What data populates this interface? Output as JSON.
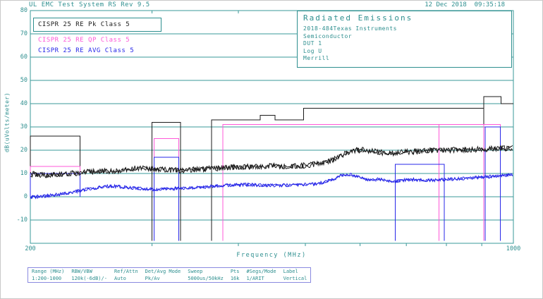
{
  "window": {
    "title": "UL EMC Test System RS Rev 9.5",
    "datetime": "12 Dec 2018  09:35:18"
  },
  "colors": {
    "teal": "#2e8f8f",
    "grid": "#3a9999",
    "pk": "#1b1b1b",
    "qp": "#ff58d8",
    "avg": "#2727e8",
    "table_border": "#8a8ae0",
    "background": "#ffffff"
  },
  "legend": [
    {
      "label": "CISPR 25 RE Pk Class 5",
      "color_key": "pk"
    },
    {
      "label": "CISPR 25 RE QP Class 5",
      "color_key": "qp"
    },
    {
      "label": "CISPR 25 RE AVG Class 5",
      "color_key": "avg"
    }
  ],
  "info_box": {
    "title": "Radiated Emissions",
    "lines": [
      "2018-484Texas Instruments",
      "Semiconductor",
      "DUT 1",
      "Log U",
      "Merrill"
    ]
  },
  "chart_data": {
    "type": "line",
    "title": "Radiated Emissions",
    "x_axis": {
      "label": "Frequency (MHz)",
      "scale": "log",
      "min": 200,
      "max": 1000,
      "tick_labels": [
        200,
        1000
      ],
      "minor_ticks": [
        300,
        400,
        500,
        600,
        700,
        800,
        900
      ]
    },
    "y_axis": {
      "label": "dB(uVolts/meter)",
      "min": -20,
      "max": 80,
      "tick_labels": [
        80,
        70,
        60,
        50,
        40,
        30,
        20,
        10,
        0,
        -10
      ]
    },
    "series": [
      {
        "name": "CISPR 25 RE AVG Class 5 trace",
        "color_key": "avg",
        "noise_db": 0.7,
        "seed": 99,
        "passes": 2,
        "width": 1,
        "anchors": [
          [
            200,
            -0.2
          ],
          [
            210,
            0.3
          ],
          [
            222,
            1.2
          ],
          [
            235,
            2.5
          ],
          [
            248,
            3.8
          ],
          [
            260,
            4.6
          ],
          [
            272,
            4.2
          ],
          [
            285,
            3.6
          ],
          [
            300,
            3.2
          ],
          [
            315,
            3.4
          ],
          [
            330,
            3.6
          ],
          [
            350,
            4.0
          ],
          [
            370,
            4.6
          ],
          [
            390,
            5.0
          ],
          [
            410,
            5.2
          ],
          [
            430,
            5.0
          ],
          [
            450,
            4.8
          ],
          [
            470,
            5.0
          ],
          [
            490,
            5.2
          ],
          [
            510,
            5.4
          ],
          [
            530,
            6.0
          ],
          [
            550,
            7.5
          ],
          [
            565,
            9.2
          ],
          [
            580,
            9.6
          ],
          [
            595,
            8.6
          ],
          [
            610,
            7.4
          ],
          [
            625,
            7.0
          ],
          [
            640,
            7.6
          ],
          [
            655,
            7.0
          ],
          [
            670,
            6.6
          ],
          [
            690,
            7.0
          ],
          [
            710,
            7.4
          ],
          [
            730,
            7.2
          ],
          [
            760,
            7.0
          ],
          [
            800,
            7.4
          ],
          [
            840,
            7.8
          ],
          [
            880,
            8.2
          ],
          [
            920,
            8.6
          ],
          [
            960,
            9.0
          ],
          [
            1000,
            9.4
          ]
        ]
      },
      {
        "name": "CISPR 25 RE Pk Class 5 trace",
        "color_key": "pk",
        "noise_db": 1.2,
        "seed": 1234,
        "passes": 2,
        "width": 1,
        "anchors": [
          [
            200,
            9.8
          ],
          [
            212,
            9.2
          ],
          [
            225,
            9.8
          ],
          [
            240,
            10.5
          ],
          [
            255,
            11.0
          ],
          [
            270,
            11.2
          ],
          [
            285,
            12.3
          ],
          [
            300,
            12.0
          ],
          [
            315,
            11.6
          ],
          [
            330,
            11.3
          ],
          [
            350,
            11.8
          ],
          [
            370,
            12.2
          ],
          [
            395,
            12.6
          ],
          [
            420,
            13.0
          ],
          [
            445,
            13.2
          ],
          [
            470,
            13.0
          ],
          [
            495,
            13.4
          ],
          [
            520,
            14.0
          ],
          [
            545,
            15.5
          ],
          [
            565,
            18.0
          ],
          [
            585,
            19.8
          ],
          [
            605,
            20.2
          ],
          [
            625,
            19.6
          ],
          [
            645,
            19.0
          ],
          [
            670,
            18.8
          ],
          [
            700,
            19.2
          ],
          [
            730,
            19.6
          ],
          [
            760,
            19.9
          ],
          [
            800,
            20.0
          ],
          [
            840,
            20.2
          ],
          [
            880,
            20.3
          ],
          [
            920,
            20.6
          ],
          [
            960,
            20.8
          ],
          [
            1000,
            21.0
          ]
        ]
      }
    ],
    "limits": [
      {
        "name": "pk-limit",
        "color_key": "pk",
        "segments": [
          [
            [
              200,
              0
            ],
            [
              200,
              26
            ],
            [
              236,
              26
            ],
            [
              236,
              0
            ]
          ],
          [
            [
              300,
              -19
            ],
            [
              300,
              32
            ],
            [
              330,
              32
            ],
            [
              330,
              -19
            ]
          ],
          [
            [
              366,
              -19
            ],
            [
              366,
              33
            ],
            [
              430,
              33
            ],
            [
              430,
              35
            ],
            [
              452,
              35
            ],
            [
              452,
              33
            ],
            [
              497,
              33
            ],
            [
              497,
              38
            ],
            [
              906,
              38
            ],
            [
              906,
              43
            ],
            [
              960,
              43
            ],
            [
              960,
              40
            ],
            [
              1000,
              40
            ]
          ],
          [
            [
              906,
              38
            ],
            [
              906,
              -19
            ]
          ]
        ]
      },
      {
        "name": "qp-limit",
        "color_key": "qp",
        "segments": [
          [
            [
              200,
              0
            ],
            [
              200,
              13
            ],
            [
              236,
              13
            ],
            [
              236,
              0
            ]
          ],
          [
            [
              302,
              -19
            ],
            [
              302,
              25
            ],
            [
              328,
              25
            ],
            [
              328,
              -19
            ]
          ],
          [
            [
              380,
              -19
            ],
            [
              380,
              31
            ],
            [
              958,
              31
            ],
            [
              958,
              -19
            ]
          ],
          [
            [
              780,
              31
            ],
            [
              780,
              -19
            ]
          ],
          [
            [
              906,
              31
            ],
            [
              906,
              -19
            ]
          ]
        ]
      },
      {
        "name": "avg-limit",
        "color_key": "avg",
        "segments": [
          [
            [
              200,
              0
            ],
            [
              200,
              10
            ],
            [
              236,
              10
            ],
            [
              236,
              0
            ]
          ],
          [
            [
              302,
              -19
            ],
            [
              302,
              17
            ],
            [
              328,
              17
            ],
            [
              328,
              -19
            ]
          ],
          [
            [
              675,
              -19
            ],
            [
              675,
              14
            ],
            [
              794,
              14
            ],
            [
              794,
              -19
            ]
          ],
          [
            [
              910,
              -19
            ],
            [
              910,
              30
            ],
            [
              958,
              30
            ],
            [
              958,
              -19
            ]
          ]
        ]
      }
    ]
  },
  "settings_table": {
    "headers": [
      "Range (MHz)",
      "RBW/VBW",
      "Ref/Attn",
      "Det/Avg Mode",
      "Sweep",
      "Pts",
      "#Segs/Mode",
      "Label"
    ],
    "values": [
      "1:200-1000",
      "120k(-6dB)/-",
      "Auto",
      "Pk/Av",
      "5000us/50kHz",
      "16k",
      "1/ARIT",
      "Vertical"
    ]
  }
}
